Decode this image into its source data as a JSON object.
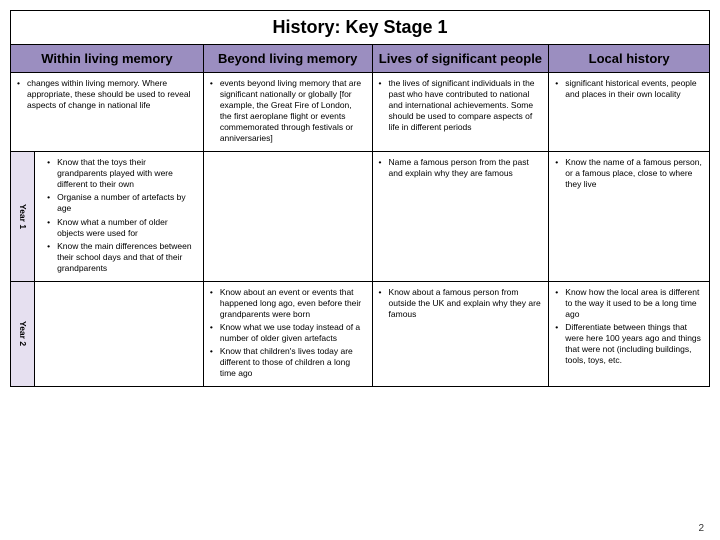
{
  "title": "History: Key Stage 1",
  "headers": {
    "col1": "Within living memory",
    "col2": "Beyond living memory",
    "col3": "Lives of significant people",
    "col4": "Local history"
  },
  "intro": {
    "col1": "changes within living memory. Where appropriate, these should be used to reveal aspects of change in national life",
    "col2": "events beyond living memory that are significant nationally or globally [for example, the Great Fire of London, the first aeroplane flight or events commemorated through festivals or anniversaries]",
    "col3": "the lives of significant individuals in the past who have contributed to national and international achievements. Some should be used to compare aspects of life in different periods",
    "col4": "significant historical events, people and places in their own locality"
  },
  "year1": {
    "label": "Year 1",
    "col1": {
      "a": "Know that the toys their grandparents played with were different to their own",
      "b": "Organise a number of artefacts by age",
      "c": "Know what a number of older objects were used for",
      "d": "Know the main differences between their school days and that of their grandparents"
    },
    "col3": "Name a famous person from the past and explain why they are famous",
    "col4": "Know the name of a famous person, or a famous place, close to where they live"
  },
  "year2": {
    "label": "Year 2",
    "col2": {
      "a": "Know about an event or events that happened long ago, even before their grandparents were born",
      "b": "Know what we use today instead of a number of older given artefacts",
      "c": "Know that children's lives today are different to those of children a long time ago"
    },
    "col3": "Know about a famous person from outside the UK and explain why they are famous",
    "col4": {
      "a": "Know how the local area is different to the way it used to be a long time ago",
      "b": "Differentiate between things that were here 100 years ago and things that were not (including buildings, tools, toys, etc."
    }
  },
  "pageNumber": "2",
  "colors": {
    "header_bg": "#9b8ec0",
    "year_bg": "#e6e0f0",
    "border": "#000000",
    "background": "#ffffff"
  }
}
